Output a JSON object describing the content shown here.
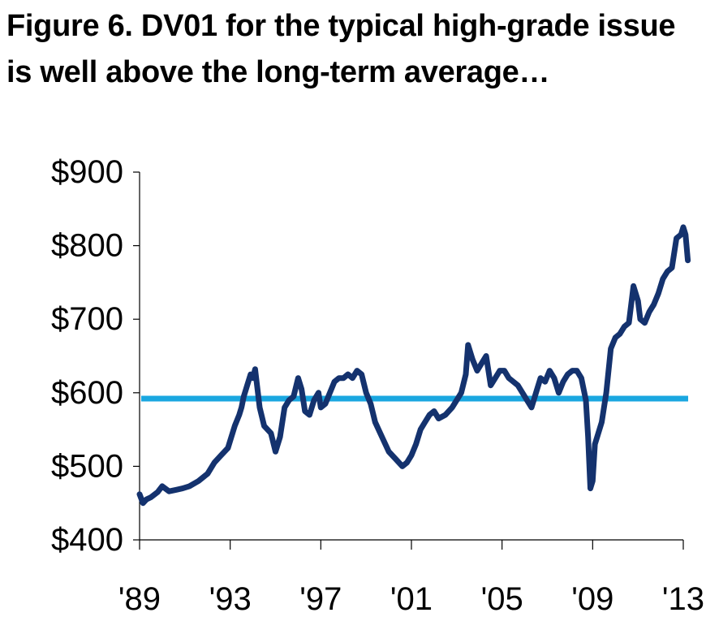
{
  "title": {
    "line1": "Figure 6. DV01 for the typical high-grade issue",
    "line2": "is well above the long-term average…"
  },
  "chart_data": {
    "type": "line",
    "title": "Figure 6. DV01 for the typical high-grade issue is well above the long-term average…",
    "xlabel": "",
    "ylabel": "",
    "xlim": [
      1989,
      2013
    ],
    "ylim": [
      400,
      900
    ],
    "y_ticks": [
      {
        "value": 400,
        "label": "$400"
      },
      {
        "value": 500,
        "label": "$500"
      },
      {
        "value": 600,
        "label": "$600"
      },
      {
        "value": 700,
        "label": "$700"
      },
      {
        "value": 800,
        "label": "$800"
      },
      {
        "value": 900,
        "label": "$900"
      }
    ],
    "x_ticks": [
      {
        "value": 1989,
        "label": "'89"
      },
      {
        "value": 1993,
        "label": "'93"
      },
      {
        "value": 1997,
        "label": "'97"
      },
      {
        "value": 2001,
        "label": "'01"
      },
      {
        "value": 2005,
        "label": "'05"
      },
      {
        "value": 2009,
        "label": "'09"
      },
      {
        "value": 2013,
        "label": "'13"
      }
    ],
    "grid": false,
    "legend": "none",
    "series": [
      {
        "color": "#14326e",
        "x": [
          1989.0,
          1989.15,
          1989.3,
          1989.5,
          1989.8,
          1990.0,
          1990.3,
          1990.6,
          1990.9,
          1991.2,
          1991.6,
          1992.0,
          1992.3,
          1992.6,
          1992.9,
          1993.0,
          1993.2,
          1993.4,
          1993.5,
          1993.6,
          1993.75,
          1993.9,
          1994.0,
          1994.1,
          1994.3,
          1994.5,
          1994.8,
          1995.0,
          1995.2,
          1995.4,
          1995.6,
          1995.8,
          1996.0,
          1996.15,
          1996.3,
          1996.5,
          1996.7,
          1996.9,
          1997.0,
          1997.2,
          1997.4,
          1997.6,
          1997.8,
          1998.0,
          1998.2,
          1998.4,
          1998.6,
          1998.8,
          1999.0,
          1999.2,
          1999.4,
          1999.7,
          2000.0,
          2000.3,
          2000.6,
          2000.8,
          2001.0,
          2001.2,
          2001.4,
          2001.6,
          2001.8,
          2002.0,
          2002.2,
          2002.5,
          2002.8,
          2003.0,
          2003.2,
          2003.4,
          2003.5,
          2003.7,
          2003.9,
          2004.1,
          2004.3,
          2004.5,
          2004.7,
          2004.9,
          2005.1,
          2005.3,
          2005.5,
          2005.7,
          2005.9,
          2006.1,
          2006.3,
          2006.5,
          2006.7,
          2006.9,
          2007.1,
          2007.3,
          2007.5,
          2007.7,
          2007.9,
          2008.1,
          2008.3,
          2008.5,
          2008.7,
          2008.8,
          2008.9,
          2009.0,
          2009.1,
          2009.2,
          2009.4,
          2009.6,
          2009.8,
          2010.0,
          2010.2,
          2010.4,
          2010.6,
          2010.8,
          2011.0,
          2011.1,
          2011.3,
          2011.5,
          2011.7,
          2011.9,
          2012.1,
          2012.3,
          2012.5,
          2012.7,
          2012.9,
          2013.0,
          2013.1,
          2013.2
        ],
        "y": [
          462,
          450,
          455,
          458,
          465,
          473,
          466,
          468,
          470,
          473,
          480,
          490,
          505,
          515,
          525,
          535,
          555,
          570,
          580,
          595,
          610,
          625,
          620,
          632,
          580,
          555,
          545,
          520,
          540,
          580,
          590,
          595,
          620,
          605,
          575,
          570,
          590,
          600,
          580,
          585,
          600,
          615,
          620,
          620,
          625,
          620,
          630,
          625,
          600,
          585,
          560,
          540,
          520,
          510,
          500,
          505,
          515,
          530,
          550,
          560,
          570,
          575,
          565,
          570,
          580,
          590,
          600,
          625,
          665,
          645,
          630,
          640,
          650,
          610,
          620,
          630,
          630,
          620,
          615,
          610,
          600,
          590,
          580,
          600,
          620,
          615,
          630,
          620,
          600,
          615,
          625,
          630,
          630,
          620,
          590,
          540,
          470,
          480,
          530,
          540,
          560,
          600,
          660,
          675,
          680,
          690,
          695,
          745,
          725,
          700,
          695,
          710,
          720,
          735,
          755,
          765,
          770,
          810,
          815,
          825,
          815,
          780
        ]
      }
    ],
    "reference_lines": [
      {
        "value": 592,
        "color": "#1aa7e0"
      }
    ]
  }
}
